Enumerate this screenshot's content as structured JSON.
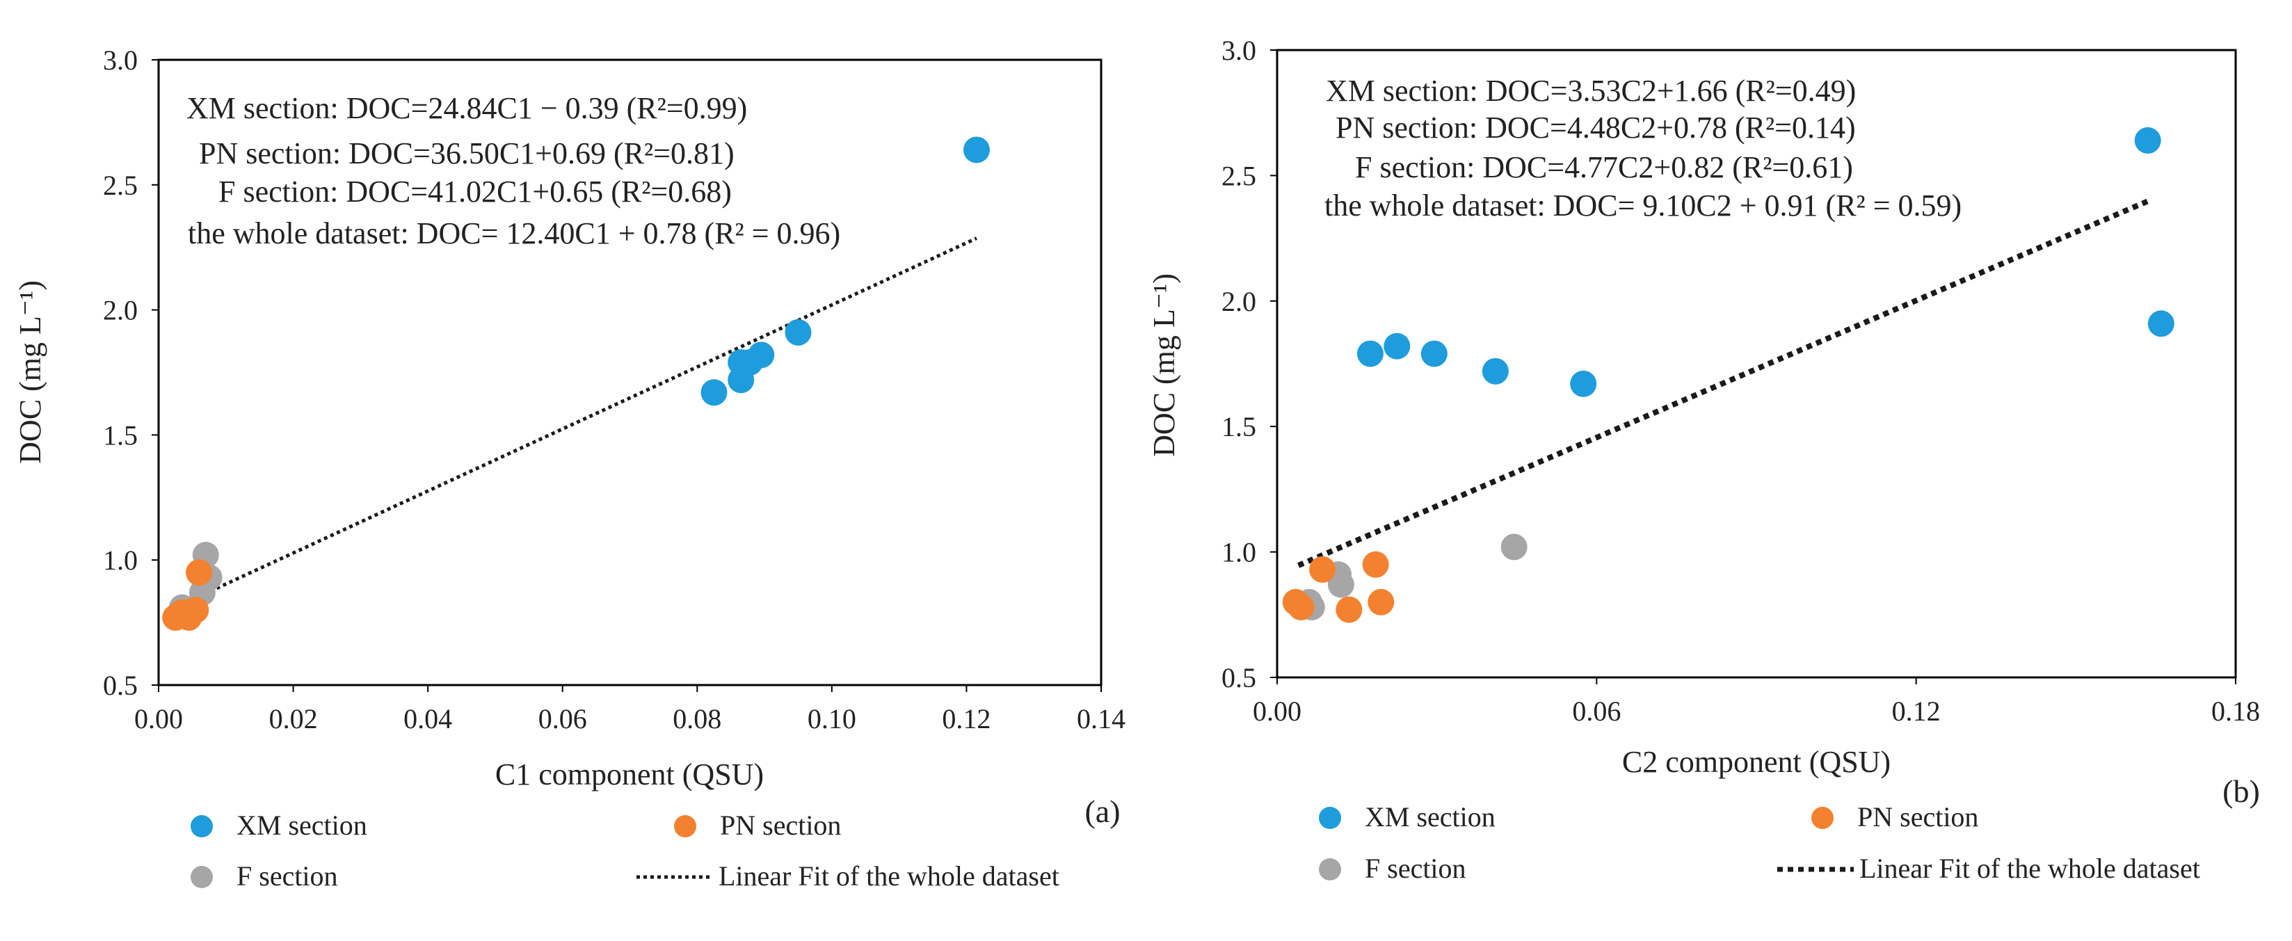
{
  "colors": {
    "xm": "#1f9cdb",
    "pn": "#f4812f",
    "f": "#a6a6a6",
    "fit": "#1a1a1a",
    "frame": "#000000",
    "text": "#222222"
  },
  "legend": {
    "xm": "XM section",
    "pn": "PN section",
    "f": "F section",
    "fit": "Linear Fit of the whole dataset"
  },
  "chart_data": [
    {
      "panel_label": "(a)",
      "type": "scatter",
      "xlabel": "C1 component  (QSU)",
      "ylabel": "DOC (mg L⁻¹)",
      "xlim": [
        0,
        0.14
      ],
      "ylim": [
        0.5,
        3.0
      ],
      "xticks": [
        0,
        0.02,
        0.04,
        0.06,
        0.08,
        0.1,
        0.12,
        0.14
      ],
      "xtick_labels": [
        "0.00",
        "0.02",
        "0.04",
        "0.06",
        "0.08",
        "0.10",
        "0.12",
        "0.14"
      ],
      "yticks": [
        0.5,
        1.0,
        1.5,
        2.0,
        2.5,
        3.0
      ],
      "ytick_labels": [
        "0.5",
        "1.0",
        "1.5",
        "2.0",
        "2.5",
        "3.0"
      ],
      "annotations": [
        "XM section: DOC=24.84C1 − 0.39  (R²=0.99)",
        "PN section: DOC=36.50C1+0.69  (R²=0.81)",
        "F section: DOC=41.02C1+0.65  (R²=0.68)",
        "the whole dataset:  DOC= 12.40C1  + 0.78  (R² = 0.96)"
      ],
      "series": [
        {
          "name": "XM section",
          "key": "xm",
          "points": [
            [
              0.1215,
              2.64
            ],
            [
              0.095,
              1.91
            ],
            [
              0.0895,
              1.82
            ],
            [
              0.0878,
              1.79
            ],
            [
              0.0865,
              1.72
            ],
            [
              0.0865,
              1.79
            ],
            [
              0.0825,
              1.67
            ]
          ]
        },
        {
          "name": "PN section",
          "key": "pn",
          "points": [
            [
              0.0025,
              0.77
            ],
            [
              0.0035,
              0.79
            ],
            [
              0.004,
              0.78
            ],
            [
              0.0055,
              0.8
            ],
            [
              0.006,
              0.95
            ],
            [
              0.0045,
              0.77
            ]
          ]
        },
        {
          "name": "F section",
          "key": "f",
          "points": [
            [
              0.007,
              1.02
            ],
            [
              0.0075,
              0.93
            ],
            [
              0.0065,
              0.87
            ],
            [
              0.004,
              0.78
            ],
            [
              0.0035,
              0.81
            ]
          ]
        }
      ],
      "fit": {
        "slope": 12.4,
        "intercept": 0.78,
        "x_range": [
          0.003,
          0.1215
        ]
      }
    },
    {
      "panel_label": "(b)",
      "type": "scatter",
      "xlabel": "C2 component  (QSU)",
      "ylabel": "DOC (mg L⁻¹)",
      "xlim": [
        0,
        0.18
      ],
      "ylim": [
        0.5,
        3.0
      ],
      "xticks": [
        0,
        0.06,
        0.12,
        0.18
      ],
      "xtick_labels": [
        "0.00",
        "0.06",
        "0.12",
        "0.18"
      ],
      "yticks": [
        0.5,
        1.0,
        1.5,
        2.0,
        2.5,
        3.0
      ],
      "ytick_labels": [
        "0.5",
        "1.0",
        "1.5",
        "2.0",
        "2.5",
        "3.0"
      ],
      "annotations": [
        "XM section: DOC=3.53C2+1.66  (R²=0.49)",
        "PN section: DOC=4.48C2+0.78  (R²=0.14)",
        "F section: DOC=4.77C2+0.82  (R²=0.61)",
        "the whole dataset:  DOC= 9.10C2  + 0.91  (R² = 0.59)"
      ],
      "series": [
        {
          "name": "XM section",
          "key": "xm",
          "points": [
            [
              0.1635,
              2.64
            ],
            [
              0.166,
              1.91
            ],
            [
              0.0225,
              1.82
            ],
            [
              0.0295,
              1.79
            ],
            [
              0.0175,
              1.79
            ],
            [
              0.041,
              1.72
            ],
            [
              0.0575,
              1.67
            ]
          ]
        },
        {
          "name": "PN section",
          "key": "pn",
          "points": [
            [
              0.0035,
              0.8
            ],
            [
              0.0045,
              0.78
            ],
            [
              0.0085,
              0.93
            ],
            [
              0.0185,
              0.95
            ],
            [
              0.0195,
              0.8
            ],
            [
              0.0135,
              0.77
            ]
          ]
        },
        {
          "name": "F section",
          "key": "f",
          "points": [
            [
              0.0445,
              1.02
            ],
            [
              0.0115,
              0.91
            ],
            [
              0.012,
              0.87
            ],
            [
              0.006,
              0.8
            ],
            [
              0.0065,
              0.78
            ]
          ]
        }
      ],
      "fit": {
        "slope": 9.1,
        "intercept": 0.91,
        "x_range": [
          0.004,
          0.1635
        ]
      }
    }
  ]
}
